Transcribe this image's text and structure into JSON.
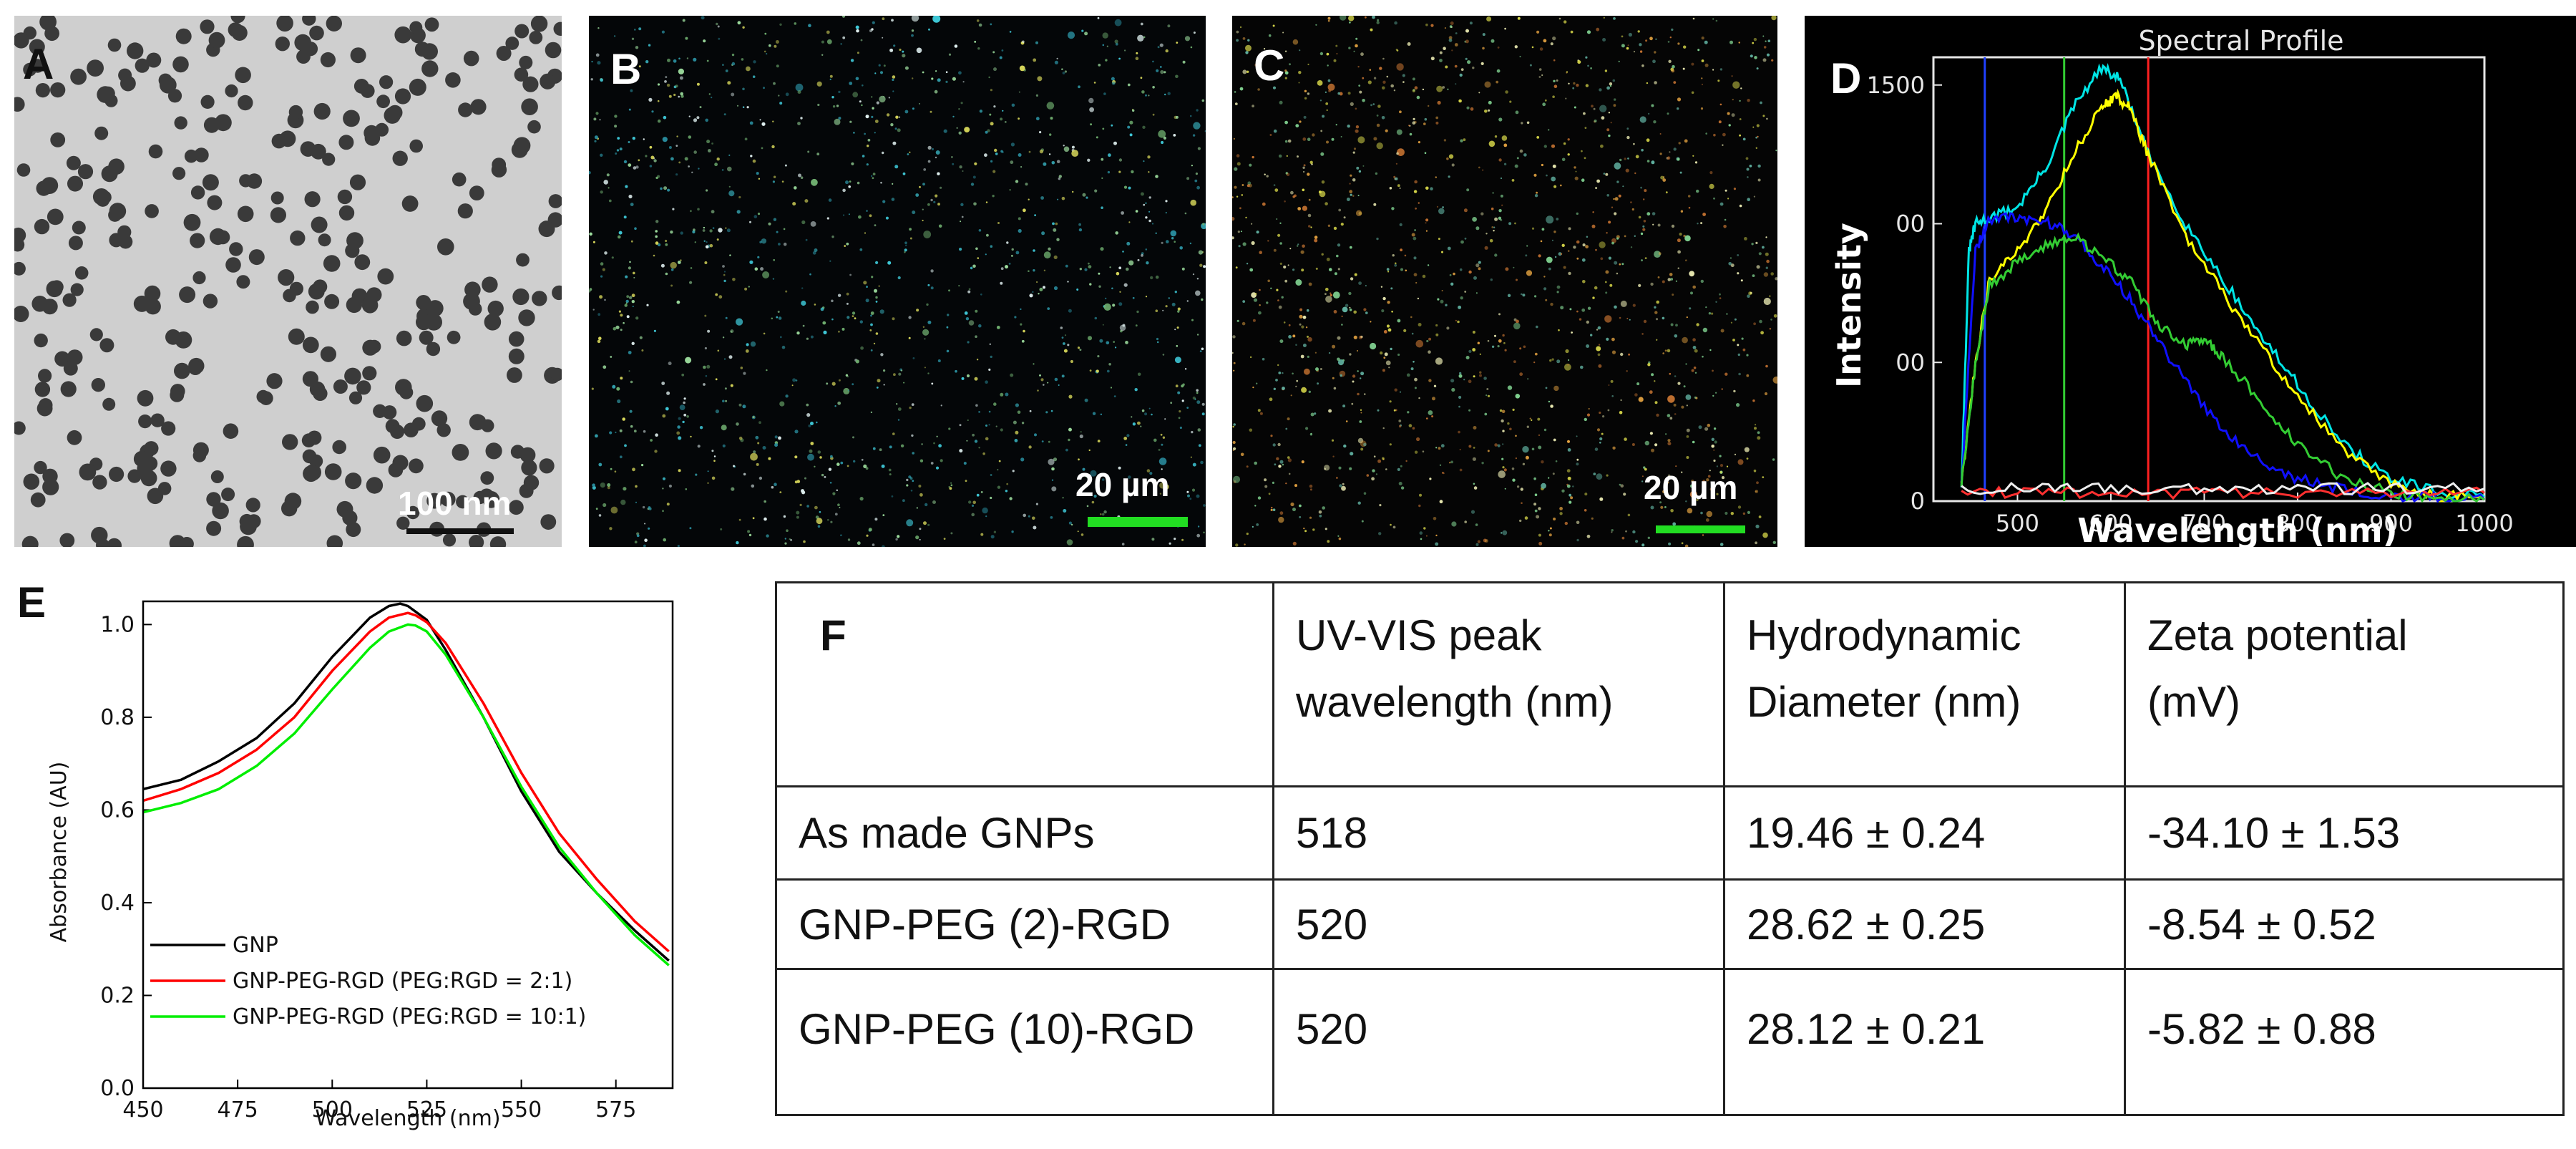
{
  "panels": {
    "a": {
      "label": "A",
      "scale": "100 nm"
    },
    "b": {
      "label": "B",
      "scale": "20 µm"
    },
    "c": {
      "label": "C",
      "scale": "20  µm"
    },
    "d": {
      "label": "D",
      "title": "Spectral Profile",
      "ylabel": "Intensity",
      "xlabel": "Wavelength (nm)",
      "xticks": [
        "500",
        "600",
        "700",
        "800",
        "900",
        "1000"
      ],
      "yticks": [
        "1500",
        "00",
        "00",
        "0"
      ]
    },
    "e": {
      "label": "E"
    },
    "f": {
      "label": "F"
    }
  },
  "chart_data": [
    {
      "type": "line",
      "title": "Spectral Profile",
      "xlabel": "Wavelength (nm)",
      "ylabel": "Intensity",
      "xlim": [
        410,
        1000
      ],
      "ylim": [
        0,
        1600
      ],
      "markers": [
        465,
        550,
        640
      ],
      "series": [
        {
          "color": "#00e5e5",
          "x": [
            440,
            448,
            455,
            470,
            500,
            530,
            560,
            590,
            610,
            640,
            680,
            720,
            760,
            800,
            850,
            900,
            950,
            1000
          ],
          "y": [
            60,
            900,
            1000,
            1020,
            1060,
            1200,
            1420,
            1560,
            1520,
            1250,
            1000,
            800,
            600,
            420,
            200,
            80,
            30,
            15
          ]
        },
        {
          "color": "#ffff00",
          "x": [
            440,
            455,
            470,
            500,
            530,
            560,
            590,
            605,
            620,
            640,
            680,
            720,
            760,
            800,
            850,
            900,
            950,
            1000
          ],
          "y": [
            60,
            500,
            800,
            900,
            1050,
            1250,
            1420,
            1460,
            1420,
            1250,
            950,
            750,
            560,
            380,
            180,
            60,
            20,
            10
          ]
        },
        {
          "color": "#1010ff",
          "x": [
            440,
            455,
            470,
            500,
            530,
            560,
            590,
            620,
            650,
            680,
            720,
            760,
            800,
            850,
            900,
            950,
            1000
          ],
          "y": [
            60,
            900,
            1020,
            1020,
            1010,
            960,
            850,
            730,
            580,
            430,
            260,
            150,
            80,
            40,
            20,
            10,
            5
          ]
        },
        {
          "color": "#33cc33",
          "x": [
            440,
            455,
            470,
            500,
            530,
            560,
            590,
            620,
            650,
            680,
            700,
            720,
            760,
            800,
            850,
            900,
            950,
            1000
          ],
          "y": [
            60,
            500,
            780,
            860,
            920,
            960,
            880,
            800,
            640,
            560,
            580,
            520,
            360,
            200,
            80,
            30,
            10,
            5
          ]
        },
        {
          "color": "#ff3030",
          "x": [
            440,
            520,
            600,
            700,
            800,
            900,
            1000
          ],
          "y": [
            30,
            30,
            30,
            30,
            30,
            30,
            30
          ]
        },
        {
          "color": "#eeeeee",
          "x": [
            440,
            520,
            600,
            700,
            800,
            900,
            1000
          ],
          "y": [
            45,
            45,
            45,
            45,
            45,
            45,
            45
          ]
        }
      ]
    },
    {
      "type": "line",
      "xlabel": "Wavelength (nm)",
      "ylabel": "Absorbance (AU)",
      "xlim": [
        450,
        590
      ],
      "ylim": [
        0.0,
        1.05
      ],
      "xticks": [
        450,
        475,
        500,
        525,
        550,
        575
      ],
      "yticks": [
        0.0,
        0.2,
        0.4,
        0.6,
        0.8,
        1.0
      ],
      "series": [
        {
          "name": "GNP",
          "color": "#000000",
          "x": [
            450,
            460,
            470,
            480,
            490,
            500,
            510,
            515,
            518,
            520,
            525,
            530,
            540,
            550,
            560,
            570,
            580,
            589
          ],
          "y": [
            0.645,
            0.665,
            0.705,
            0.755,
            0.83,
            0.93,
            1.015,
            1.04,
            1.045,
            1.04,
            1.01,
            0.945,
            0.8,
            0.64,
            0.51,
            0.42,
            0.34,
            0.275
          ]
        },
        {
          "name": "GNP-PEG-RGD (PEG:RGD = 2:1)",
          "color": "#ff0000",
          "x": [
            450,
            460,
            470,
            480,
            490,
            500,
            510,
            515,
            520,
            522,
            525,
            530,
            540,
            550,
            560,
            570,
            580,
            589
          ],
          "y": [
            0.62,
            0.645,
            0.68,
            0.73,
            0.8,
            0.9,
            0.985,
            1.015,
            1.025,
            1.02,
            1.005,
            0.96,
            0.83,
            0.68,
            0.55,
            0.45,
            0.36,
            0.295
          ]
        },
        {
          "name": "GNP-PEG-RGD (PEG:RGD = 10:1)",
          "color": "#00ee00",
          "x": [
            450,
            460,
            470,
            480,
            490,
            500,
            510,
            515,
            520,
            522,
            525,
            530,
            540,
            550,
            560,
            570,
            580,
            589
          ],
          "y": [
            0.595,
            0.615,
            0.645,
            0.695,
            0.765,
            0.86,
            0.95,
            0.985,
            1.0,
            0.998,
            0.985,
            0.935,
            0.8,
            0.65,
            0.52,
            0.42,
            0.33,
            0.265
          ]
        }
      ]
    }
  ],
  "table": {
    "headers": [
      "",
      "UV-VIS peak\nwavelength (nm)",
      "Hydrodynamic\nDiameter (nm)",
      "Zeta potential\n(mV)"
    ],
    "rows": [
      [
        "As made GNPs",
        "518",
        "19.46 ± 0.24",
        "-34.10 ± 1.53"
      ],
      [
        "GNP-PEG (2)-RGD",
        "520",
        "28.62 ± 0.25",
        "-8.54 ± 0.52"
      ],
      [
        "GNP-PEG (10)-RGD",
        "520",
        "28.12 ± 0.21",
        "-5.82 ± 0.88"
      ]
    ]
  },
  "colors": {
    "scale_bar_green": "#22dd22",
    "tem_background": "#cfcfcf",
    "particle": "#3a3a3a"
  }
}
